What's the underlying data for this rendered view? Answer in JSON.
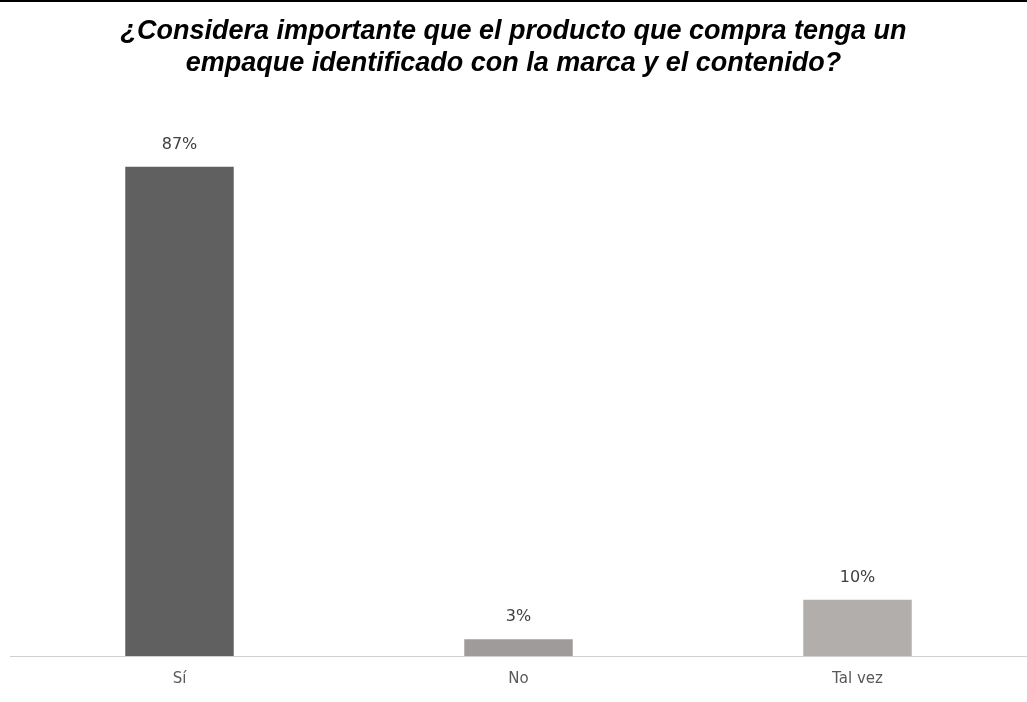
{
  "chart_data": {
    "type": "bar",
    "title": "¿Considera importante que el producto que compra tenga un empaque identificado con la marca y el contenido?",
    "categories": [
      "Sí",
      "No",
      "Tal vez"
    ],
    "values": [
      87,
      3,
      10
    ],
    "value_labels": [
      "87%",
      "3%",
      "10%"
    ],
    "colors": [
      "#606060",
      "#9f9b9a",
      "#b1aeac"
    ],
    "grid": false,
    "legend": false
  }
}
